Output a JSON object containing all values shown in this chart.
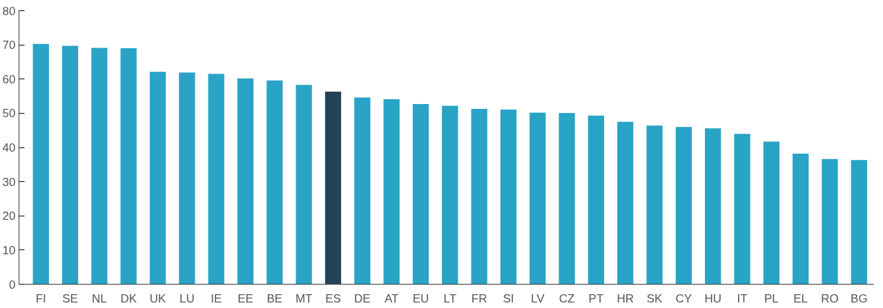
{
  "chart_data": {
    "type": "bar",
    "categories": [
      "FI",
      "SE",
      "NL",
      "DK",
      "UK",
      "LU",
      "IE",
      "EE",
      "BE",
      "MT",
      "ES",
      "DE",
      "AT",
      "EU",
      "LT",
      "FR",
      "SI",
      "LV",
      "CZ",
      "PT",
      "HR",
      "SK",
      "CY",
      "HU",
      "IT",
      "PL",
      "EL",
      "RO",
      "BG"
    ],
    "values": [
      70.3,
      69.7,
      69.1,
      69.0,
      62.1,
      61.9,
      61.5,
      60.2,
      59.6,
      58.3,
      56.3,
      54.6,
      54.1,
      52.7,
      52.2,
      51.3,
      51.1,
      50.2,
      50.1,
      49.3,
      47.5,
      46.4,
      46.0,
      45.6,
      44.0,
      41.7,
      38.2,
      36.6,
      36.3
    ],
    "colors": [
      "#29a3c6",
      "#29a3c6",
      "#29a3c6",
      "#29a3c6",
      "#29a3c6",
      "#29a3c6",
      "#29a3c6",
      "#29a3c6",
      "#29a3c6",
      "#29a3c6",
      "#23435a",
      "#29a3c6",
      "#29a3c6",
      "#29a3c6",
      "#29a3c6",
      "#29a3c6",
      "#29a3c6",
      "#29a3c6",
      "#29a3c6",
      "#29a3c6",
      "#29a3c6",
      "#29a3c6",
      "#29a3c6",
      "#29a3c6",
      "#29a3c6",
      "#29a3c6",
      "#29a3c6",
      "#29a3c6",
      "#29a3c6"
    ],
    "ylim": [
      0,
      80
    ],
    "yticks": [
      0,
      10,
      20,
      30,
      40,
      50,
      60,
      70,
      80
    ],
    "grid": false
  }
}
